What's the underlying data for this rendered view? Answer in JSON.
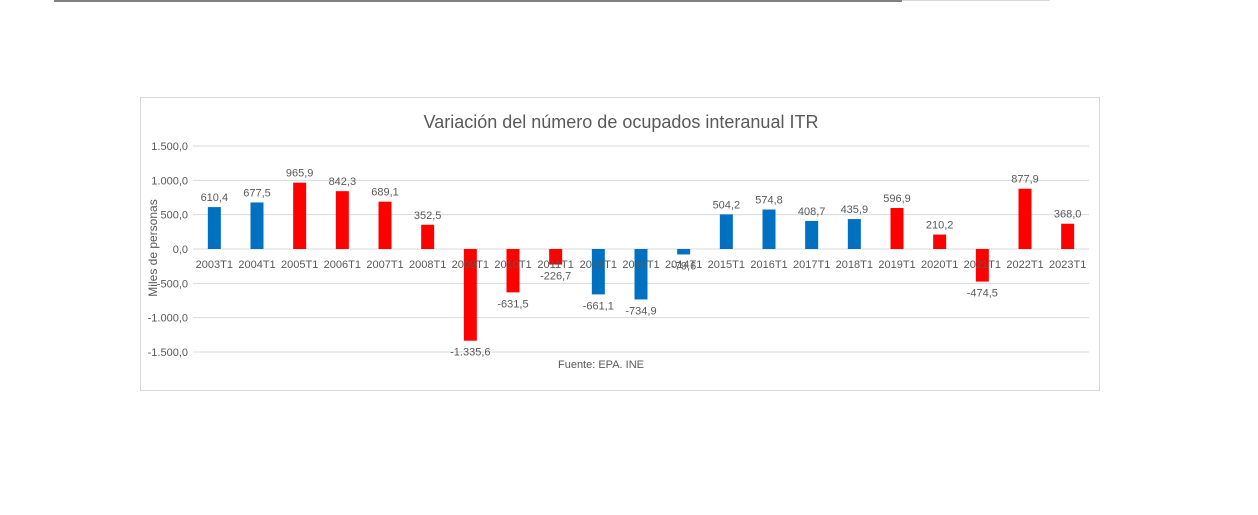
{
  "chart_data": {
    "type": "bar",
    "title": "Variación del número de ocupados interanual ITR",
    "ylabel": "Miles de personas",
    "source_note": "Fuente: EPA. INE",
    "ylim": [
      -1500,
      1500
    ],
    "y_ticks": [
      1500,
      1000,
      500,
      0,
      -500,
      -1000,
      -1500
    ],
    "y_tick_labels": [
      "1.500,0",
      "1.000,0",
      "500,0",
      "0,0",
      "-500,0",
      "-1.000,0",
      "-1.500,0"
    ],
    "grid": true,
    "categories": [
      "2003T1",
      "2004T1",
      "2005T1",
      "2006T1",
      "2007T1",
      "2008T1",
      "2009T1",
      "2010T1",
      "2011T1",
      "2012T1",
      "2013T1",
      "2014T1",
      "2015T1",
      "2016T1",
      "2017T1",
      "2018T1",
      "2019T1",
      "2020T1",
      "2021T1",
      "2022T1",
      "2023T1"
    ],
    "values": [
      610.4,
      677.5,
      965.9,
      842.3,
      689.1,
      352.5,
      -1335.6,
      -631.5,
      -226.7,
      -661.1,
      -734.9,
      -79.6,
      504.2,
      574.8,
      408.7,
      435.9,
      596.9,
      210.2,
      -474.5,
      877.9,
      368.0
    ],
    "value_labels": [
      "610,4",
      "677,5",
      "965,9",
      "842,3",
      "689,1",
      "352,5",
      "-1.335,6",
      "-631,5",
      "-226,7",
      "-661,1",
      "-734,9",
      "-79,6",
      "504,2",
      "574,8",
      "408,7",
      "435,9",
      "596,9",
      "210,2",
      "-474,5",
      "877,9",
      "368,0"
    ],
    "bar_colors": [
      "#0070c0",
      "#0070c0",
      "#ff0000",
      "#ff0000",
      "#ff0000",
      "#ff0000",
      "#ff0000",
      "#ff0000",
      "#ff0000",
      "#0070c0",
      "#0070c0",
      "#0070c0",
      "#0070c0",
      "#0070c0",
      "#0070c0",
      "#0070c0",
      "#ff0000",
      "#ff0000",
      "#ff0000",
      "#ff0000",
      "#ff0000"
    ]
  },
  "colors": {
    "blue": "#0070c0",
    "red": "#ff0000",
    "grid": "#d9d9d9",
    "text": "#595959"
  }
}
